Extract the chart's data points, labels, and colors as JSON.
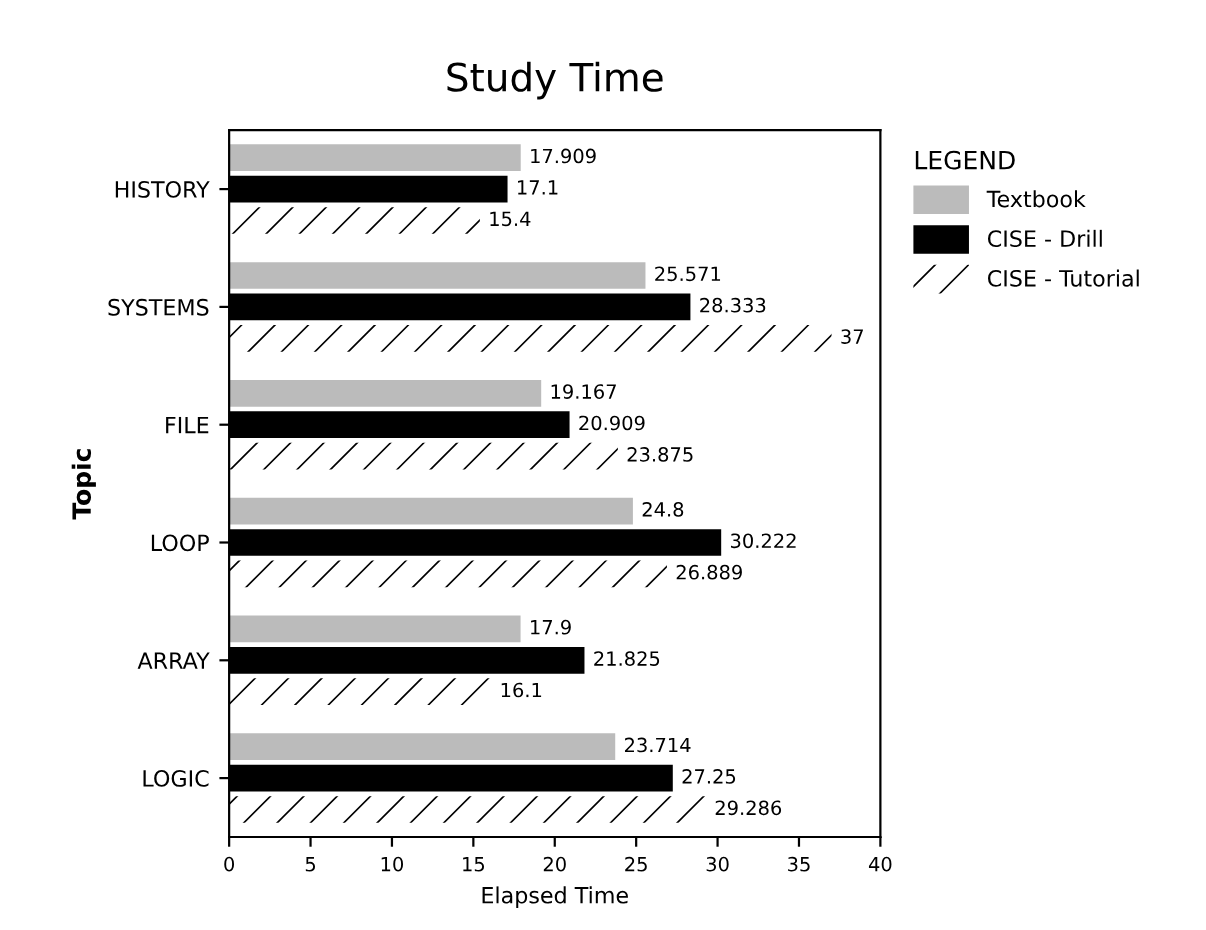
{
  "chart_data": {
    "type": "bar",
    "orientation": "horizontal",
    "title": "Study Time",
    "xlabel": "Elapsed Time",
    "ylabel": "Topic",
    "legend_title": "LEGEND",
    "categories": [
      "HISTORY",
      "SYSTEMS",
      "FILE",
      "LOOP",
      "ARRAY",
      "LOGIC"
    ],
    "series": [
      {
        "name": "Textbook",
        "color": "#bbbbbb",
        "values": [
          17.909,
          25.571,
          19.167,
          24.8,
          17.9,
          23.714
        ]
      },
      {
        "name": "CISE - Drill",
        "color": "#000000",
        "values": [
          17.1,
          28.333,
          20.909,
          30.222,
          21.825,
          27.25
        ]
      },
      {
        "name": "CISE - Tutorial",
        "color": "#ffffff",
        "values": [
          15.4,
          37,
          23.875,
          26.889,
          16.1,
          29.286
        ]
      }
    ],
    "xlim": [
      0,
      40
    ],
    "xticks": [
      0,
      5,
      10,
      15,
      20,
      25,
      30,
      35,
      40
    ],
    "data_labels": true,
    "legend": "right",
    "grid": false
  }
}
